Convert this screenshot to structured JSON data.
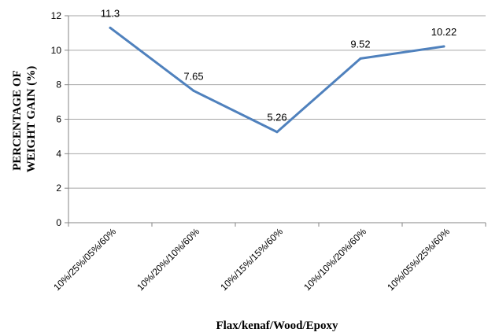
{
  "chart_data": {
    "type": "line",
    "categories": [
      "10%/25%/05%/60%",
      "10%/20%/10%/60%",
      "10%/15%/15%/60%",
      "10%/10%/20%/60%",
      "10%/05%/25%/60%"
    ],
    "values": [
      11.3,
      7.65,
      5.26,
      9.52,
      10.22
    ],
    "data_labels": [
      "11.3",
      "7.65",
      "5.26",
      "9.52",
      "10.22"
    ],
    "title": "",
    "xlabel": "Flax/kenaf/Wood/Epoxy",
    "ylabel_lines": [
      "PERCENTAGE OF",
      "WEIGHT GAIN (%)"
    ],
    "ylim": [
      0,
      12
    ],
    "yticks": [
      0,
      2,
      4,
      6,
      8,
      10,
      12
    ],
    "grid": true,
    "legend": "none",
    "line_color": "#4F81BD",
    "grid_color": "#A6A6A6"
  }
}
